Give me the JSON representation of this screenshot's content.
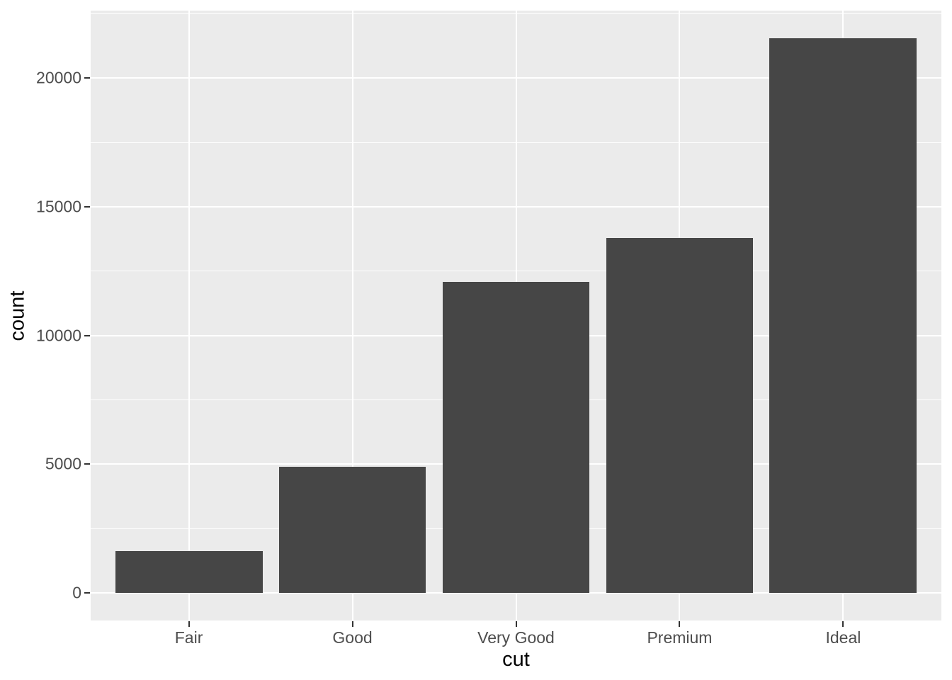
{
  "chart_data": {
    "type": "bar",
    "title": "",
    "xlabel": "cut",
    "ylabel": "count",
    "categories": [
      "Fair",
      "Good",
      "Very Good",
      "Premium",
      "Ideal"
    ],
    "values": [
      1610,
      4906,
      12082,
      13791,
      21551
    ],
    "yticks": [
      0,
      5000,
      10000,
      15000,
      20000
    ],
    "ytick_labels": [
      "0",
      "5000",
      "10000",
      "15000",
      "20000"
    ],
    "minor_yticks": [
      2500,
      7500,
      12500,
      17500,
      22500
    ],
    "ylim": [
      -1078,
      22629
    ],
    "grid": "major-and-minor-white",
    "legend": "none",
    "colors": {
      "bar_fill": "#464646",
      "panel_background": "#EBEBEB",
      "gridline": "#FFFFFF",
      "tick_label": "#4D4D4D",
      "tick_mark": "#333333",
      "axis_title": "#000000",
      "figure_background": "#FFFFFF"
    }
  }
}
